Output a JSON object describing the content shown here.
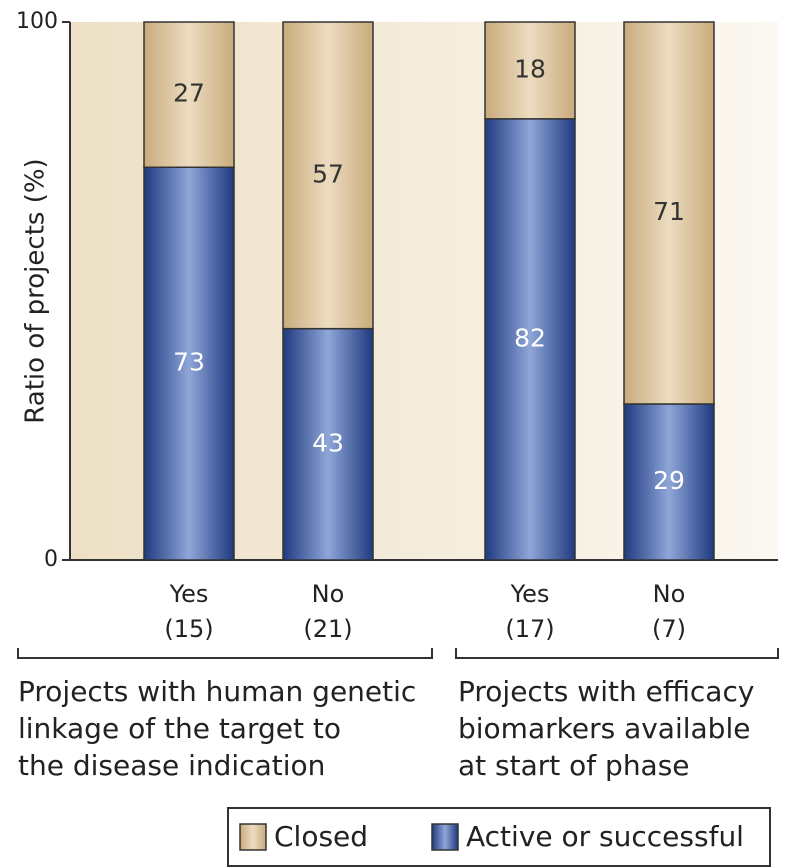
{
  "chart_data": {
    "type": "stacked_bar",
    "ylabel": "Ratio of projects (%)",
    "categories": [
      "Yes",
      "No",
      "Yes",
      "No"
    ],
    "counts": [
      15,
      21,
      17,
      7
    ],
    "count_labels": [
      "(15)",
      "(21)",
      "(17)",
      "(7)"
    ],
    "groups": [
      {
        "lines": [
          "Projects with human genetic",
          "linkage of the target to",
          "the disease indication"
        ]
      },
      {
        "lines": [
          "Projects with efficacy",
          "biomarkers available",
          "at start of phase"
        ]
      }
    ],
    "series": [
      {
        "name": "Active or successful",
        "color": "#2f4f9c",
        "values": [
          73,
          43,
          82,
          29
        ]
      },
      {
        "name": "Closed",
        "color": "#d6bc92",
        "values": [
          27,
          57,
          18,
          71
        ]
      }
    ],
    "ylim": [
      0,
      100
    ],
    "yticks": [
      0,
      100
    ]
  }
}
